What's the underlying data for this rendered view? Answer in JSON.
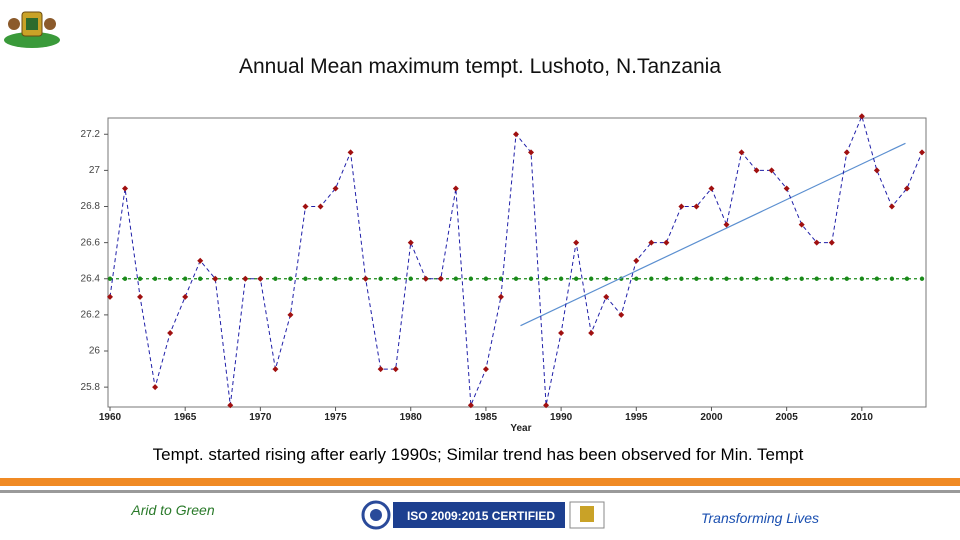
{
  "chart_data": {
    "type": "line",
    "title": "Annual Mean maximum tempt. Lushoto, N.Tanzania",
    "x_label": "Year",
    "x": [
      1960,
      1961,
      1962,
      1963,
      1964,
      1965,
      1966,
      1967,
      1968,
      1969,
      1970,
      1971,
      1972,
      1973,
      1974,
      1975,
      1976,
      1977,
      1978,
      1979,
      1980,
      1981,
      1982,
      1983,
      1984,
      1985,
      1986,
      1987,
      1988,
      1989,
      1990,
      1991,
      1992,
      1993,
      1994,
      1995,
      1996,
      1997,
      1998,
      1999,
      2000,
      2001,
      2002,
      2003,
      2004,
      2005,
      2006,
      2007,
      2008,
      2009,
      2010,
      2011,
      2012,
      2013,
      2014
    ],
    "series": [
      {
        "color": "#1f1fa8",
        "marker_color": "#a01010",
        "values": [
          26.3,
          26.9,
          26.3,
          25.8,
          26.1,
          26.3,
          26.5,
          26.4,
          25.7,
          26.4,
          26.4,
          25.9,
          26.2,
          26.8,
          26.8,
          26.9,
          27.1,
          26.4,
          25.9,
          25.9,
          26.6,
          26.4,
          26.4,
          26.9,
          25.7,
          25.9,
          26.3,
          27.2,
          27.1,
          25.7,
          26.1,
          26.6,
          26.1,
          26.3,
          26.2,
          26.5,
          26.6,
          26.6,
          26.8,
          26.8,
          26.9,
          26.7,
          27.1,
          27.0,
          27.0,
          26.9,
          26.7,
          26.6,
          26.6,
          27.1,
          27.3,
          27.0,
          26.8,
          26.9,
          27.1
        ]
      }
    ],
    "mean": {
      "value": 26.4,
      "color": "#1a8a1a"
    },
    "trend": {
      "x": [
        1987.3,
        2012.9
      ],
      "values": [
        26.14,
        27.15
      ],
      "color": "#5b8fd0"
    },
    "xlim": [
      1960,
      2014.2
    ],
    "ylim": [
      25.69,
      27.29
    ],
    "xticks": [
      1960,
      1965,
      1970,
      1975,
      1980,
      1985,
      1990,
      1995,
      2000,
      2005,
      2010
    ],
    "yticks": [
      25.8,
      26,
      26.2,
      26.4,
      26.6,
      26.8,
      27,
      27.2
    ]
  },
  "caption": "Tempt.  started rising after early 1990s; Similar trend has been observed for Min. Tempt",
  "footer": {
    "left": "Arid to Green",
    "center": "ISO 2009:2015 CERTIFIED",
    "right": "Transforming Lives"
  }
}
